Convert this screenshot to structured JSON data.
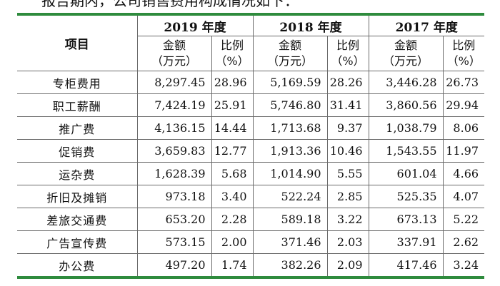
{
  "intro": {
    "text": "报告期内，公司销售费用构成情况如下："
  },
  "table": {
    "header": {
      "item": "项目",
      "years": [
        {
          "label": "2019 年度",
          "amount_line1": "金额",
          "amount_line2": "（万元）",
          "ratio_line1": "比例",
          "ratio_line2": "（%）"
        },
        {
          "label": "2018 年度",
          "amount_line1": "金额",
          "amount_line2": "（万元）",
          "ratio_line1": "比例",
          "ratio_line2": "（%）"
        },
        {
          "label": "2017 年度",
          "amount_line1": "金额",
          "amount_line2": "（万元）",
          "ratio_line1": "比例",
          "ratio_line2": "（%）"
        }
      ]
    },
    "rows": [
      {
        "name": "专柜费用",
        "v2019": "8,297.45",
        "p2019": "28.96",
        "v2018": "5,169.59",
        "p2018": "28.26",
        "v2017": "3,446.28",
        "p2017": "26.73"
      },
      {
        "name": "职工薪酬",
        "v2019": "7,424.19",
        "p2019": "25.91",
        "v2018": "5,746.80",
        "p2018": "31.41",
        "v2017": "3,860.56",
        "p2017": "29.94"
      },
      {
        "name": "推广费",
        "v2019": "4,136.15",
        "p2019": "14.44",
        "v2018": "1,713.68",
        "p2018": "9.37",
        "v2017": "1,038.79",
        "p2017": "8.06"
      },
      {
        "name": "促销费",
        "v2019": "3,659.83",
        "p2019": "12.77",
        "v2018": "1,913.36",
        "p2018": "10.46",
        "v2017": "1,543.55",
        "p2017": "11.97"
      },
      {
        "name": "运杂费",
        "v2019": "1,628.39",
        "p2019": "5.68",
        "v2018": "1,014.90",
        "p2018": "5.55",
        "v2017": "601.04",
        "p2017": "4.66"
      },
      {
        "name": "折旧及摊销",
        "v2019": "973.18",
        "p2019": "3.40",
        "v2018": "522.24",
        "p2018": "2.85",
        "v2017": "525.35",
        "p2017": "4.07"
      },
      {
        "name": "差旅交通费",
        "v2019": "653.20",
        "p2019": "2.28",
        "v2018": "589.18",
        "p2018": "3.22",
        "v2017": "673.13",
        "p2017": "5.22"
      },
      {
        "name": "广告宣传费",
        "v2019": "573.15",
        "p2019": "2.00",
        "v2018": "371.46",
        "p2018": "2.03",
        "v2017": "337.91",
        "p2017": "2.62"
      },
      {
        "name": "办公费",
        "v2019": "497.20",
        "p2019": "1.74",
        "v2018": "382.26",
        "p2018": "2.09",
        "v2017": "417.46",
        "p2017": "3.24"
      }
    ]
  },
  "colors": {
    "accent_green": "#2e8b3d",
    "grid": "#6b6b6b"
  }
}
